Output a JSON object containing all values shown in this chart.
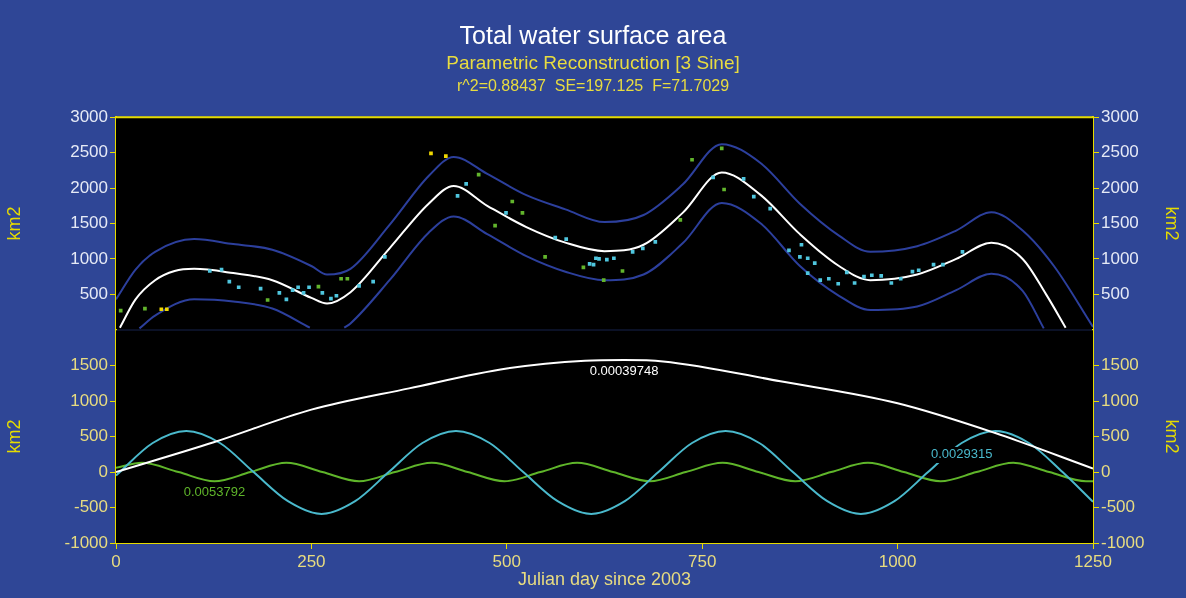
{
  "chart_data": [
    {
      "type": "line",
      "title": "Total water surface area",
      "subtitle": "Parametric Reconstruction [3 Sine]",
      "annotations": [
        "r^2=0.88437  SE=197.125  F=71.7029"
      ],
      "ylabel": "km2",
      "y2label": "km2",
      "xlim": [
        0,
        1250
      ],
      "xticks": [
        0,
        250,
        500,
        750,
        1000,
        1250
      ],
      "ylim": [
        0,
        3000
      ],
      "yticks": [
        500,
        1000,
        1500,
        2000,
        2500,
        3000
      ],
      "y2lim": [
        0,
        3000
      ],
      "y2ticks": [
        500,
        1000,
        1500,
        2000,
        2500,
        3000
      ],
      "tick_labels": "y",
      "marker": "none",
      "series": [
        {
          "type": "line",
          "color": "#2c3f9c",
          "x": [
            0,
            25,
            50,
            100,
            150,
            200,
            250,
            270,
            300,
            350,
            400,
            432,
            475,
            525,
            575,
            625,
            675,
            725,
            775,
            825,
            875,
            925,
            965,
            1025,
            1075,
            1120,
            1160,
            1200,
            1250
          ],
          "values": [
            430,
            850,
            1100,
            1280,
            1210,
            1130,
            900,
            780,
            860,
            1480,
            2170,
            2440,
            2200,
            1900,
            1700,
            1520,
            1620,
            2050,
            2620,
            2350,
            1780,
            1330,
            1100,
            1180,
            1400,
            1660,
            1400,
            900,
            40
          ]
        },
        {
          "type": "line",
          "color": "#2c3f9c",
          "x": [
            30,
            50,
            100,
            150,
            200,
            248,
            270,
            292,
            300,
            350,
            400,
            432,
            475,
            525,
            575,
            625,
            675,
            725,
            775,
            825,
            875,
            925,
            965,
            1025,
            1075,
            1120,
            1160,
            1187
          ],
          "values": [
            20,
            200,
            430,
            400,
            300,
            30,
            null,
            30,
            90,
            700,
            1370,
            1600,
            1350,
            1040,
            820,
            700,
            780,
            1220,
            1790,
            1500,
            900,
            480,
            280,
            330,
            560,
            790,
            550,
            20
          ]
        },
        {
          "type": "line",
          "color": "#ffffff",
          "x": [
            5,
            25,
            50,
            75,
            100,
            150,
            200,
            250,
            270,
            300,
            350,
            400,
            432,
            475,
            525,
            575,
            625,
            675,
            725,
            775,
            825,
            875,
            925,
            965,
            1025,
            1075,
            1120,
            1160,
            1190,
            1215
          ],
          "values": [
            30,
            430,
            700,
            830,
            860,
            800,
            700,
            450,
            370,
            530,
            1150,
            1780,
            2030,
            1750,
            1450,
            1230,
            1110,
            1200,
            1650,
            2220,
            1900,
            1350,
            900,
            700,
            780,
            1000,
            1230,
            1000,
            500,
            30
          ]
        },
        {
          "type": "scatter",
          "marker": "square",
          "color": "#4fc6de",
          "x": [
            120,
            135,
            145,
            157,
            185,
            209,
            218,
            226,
            233,
            240,
            247,
            264,
            275,
            282,
            311,
            329,
            344,
            437,
            448,
            499,
            562,
            576,
            606,
            611,
            614,
            618,
            628,
            637,
            661,
            674,
            690,
            764,
            803,
            816,
            837,
            861,
            875,
            877,
            885,
            885,
            894,
            901,
            912,
            924,
            935,
            945,
            957,
            967,
            979,
            992,
            1004,
            1019,
            1027,
            1046,
            1058,
            1083
          ],
          "values": [
            830,
            850,
            680,
            600,
            580,
            520,
            430,
            560,
            600,
            520,
            600,
            520,
            440,
            480,
            620,
            680,
            1030,
            1890,
            2060,
            1650,
            1300,
            1280,
            930,
            920,
            1010,
            1000,
            990,
            1010,
            1100,
            1150,
            1240,
            2150,
            2130,
            1880,
            1710,
            1120,
            1030,
            1200,
            1010,
            800,
            940,
            700,
            720,
            650,
            810,
            660,
            750,
            770,
            760,
            660,
            720,
            820,
            840,
            920,
            920,
            1100
          ]
        },
        {
          "type": "scatter",
          "marker": "square",
          "color": "#62b52c",
          "x": [
            6,
            37,
            194,
            259,
            288,
            296,
            464,
            485,
            507,
            520,
            549,
            598,
            624,
            648,
            722,
            737,
            775,
            778
          ],
          "values": [
            270,
            300,
            420,
            610,
            720,
            720,
            2190,
            1470,
            1810,
            1650,
            1030,
            880,
            700,
            830,
            1550,
            2400,
            2560,
            1980
          ]
        },
        {
          "type": "scatter",
          "marker": "square",
          "color": "#f0d800",
          "x": [
            58,
            65,
            403,
            422
          ],
          "values": [
            290,
            290,
            2490,
            2450
          ]
        }
      ]
    },
    {
      "type": "line",
      "xlabel": "Julian day since 2003",
      "ylabel": "km2",
      "y2label": "km2",
      "xlim": [
        0,
        1250
      ],
      "xticks": [
        0,
        250,
        500,
        750,
        1000,
        1250
      ],
      "ylim": [
        -1000,
        2000
      ],
      "yticks": [
        -1000,
        -500,
        0,
        500,
        1000,
        1500
      ],
      "y2lim": [
        -1000,
        2000
      ],
      "y2ticks": [
        -1000,
        -500,
        0,
        500,
        1000,
        1500
      ],
      "marker": "none",
      "series": [
        {
          "name": "0.00039748",
          "color": "#ffffff",
          "x": [
            0,
            125,
            250,
            375,
            500,
            600,
            650,
            700,
            850,
            1000,
            1125,
            1250
          ],
          "values": [
            0,
            420,
            880,
            1180,
            1460,
            1570,
            1580,
            1560,
            1280,
            970,
            550,
            50
          ]
        },
        {
          "name": "0.0029315",
          "color": "#4ab9cc",
          "x": [
            0,
            47,
            90,
            133,
            176,
            220,
            263,
            306,
            349,
            392,
            435,
            478,
            521,
            565,
            608,
            651,
            694,
            737,
            780,
            823,
            866,
            910,
            953,
            996,
            1039,
            1082,
            1125,
            1168,
            1211,
            1250
          ],
          "values": [
            -50,
            410,
            580,
            410,
            0,
            -410,
            -590,
            -410,
            0,
            410,
            580,
            410,
            0,
            -410,
            -590,
            -410,
            0,
            410,
            580,
            410,
            0,
            -410,
            -590,
            -410,
            0,
            410,
            580,
            410,
            0,
            -420
          ]
        },
        {
          "name": "0.0053792",
          "color": "#5fb52a",
          "x": [
            0,
            33,
            80,
            126,
            172,
            218,
            264,
            311,
            357,
            404,
            450,
            497,
            543,
            590,
            636,
            683,
            729,
            776,
            822,
            869,
            915,
            962,
            1008,
            1055,
            1101,
            1148,
            1194,
            1241,
            1250
          ],
          "values": [
            60,
            130,
            0,
            -130,
            0,
            130,
            0,
            -130,
            0,
            130,
            0,
            -130,
            0,
            130,
            0,
            -130,
            0,
            130,
            0,
            -130,
            0,
            130,
            0,
            -130,
            0,
            130,
            0,
            -130,
            -130
          ]
        }
      ]
    }
  ]
}
